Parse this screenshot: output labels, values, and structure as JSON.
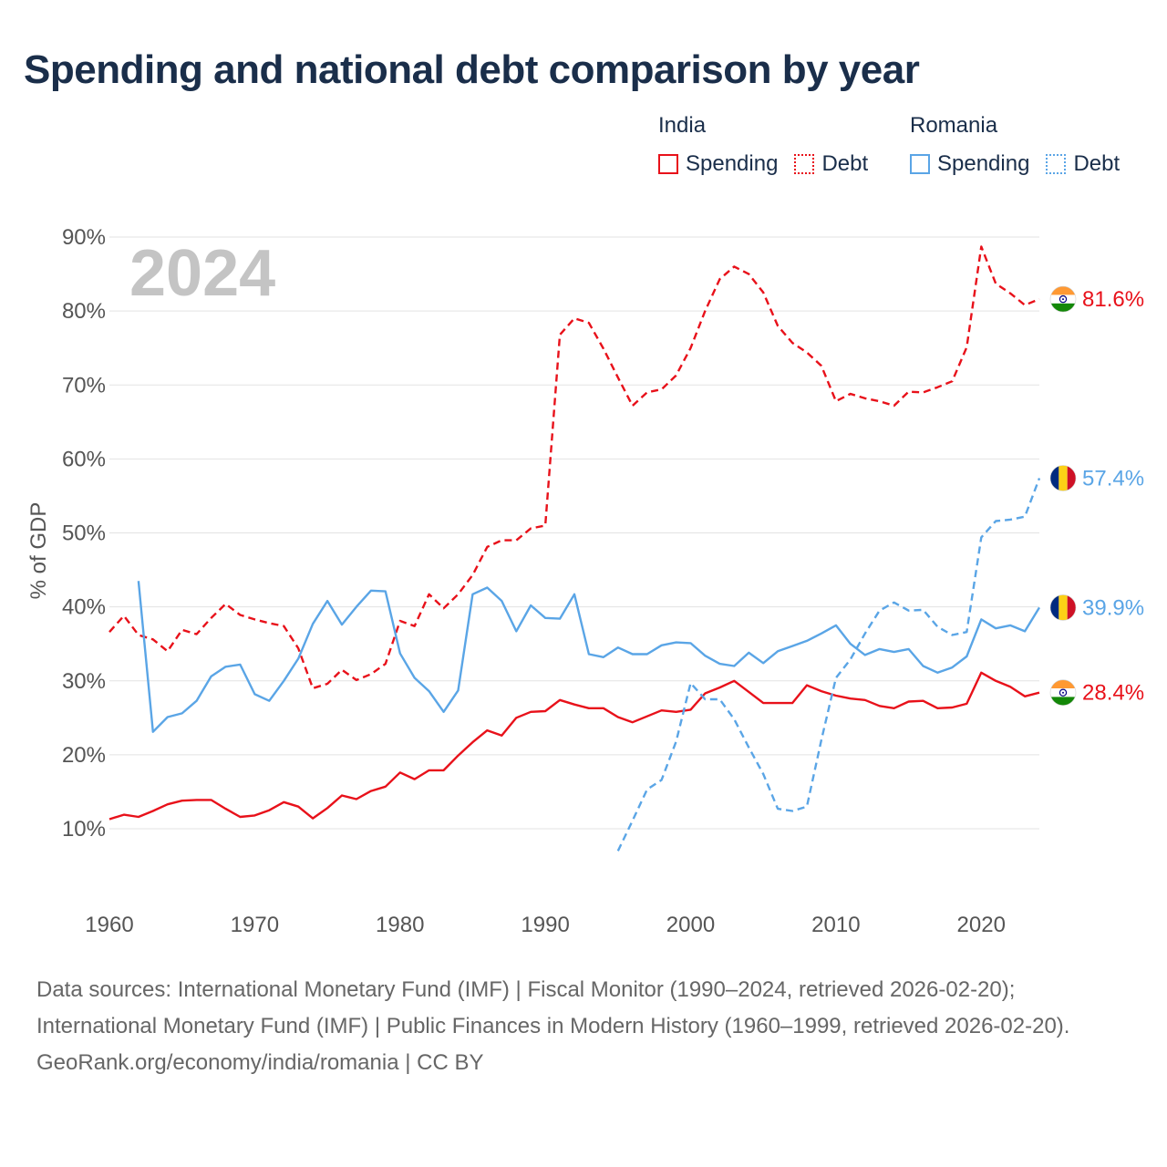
{
  "title": "Spending and national debt comparison by year",
  "legend": {
    "groups": [
      {
        "country": "India",
        "color": "#e8111a",
        "items": [
          "Spending",
          "Debt"
        ]
      },
      {
        "country": "Romania",
        "color": "#5aa5e6",
        "items": [
          "Spending",
          "Debt"
        ]
      }
    ]
  },
  "year_watermark": "2024",
  "end_labels": [
    {
      "text": "81.6%",
      "value": 81.6,
      "color": "#e8111a",
      "flag": "india-flag"
    },
    {
      "text": "57.4%",
      "value": 57.4,
      "color": "#5aa5e6",
      "flag": "romania-flag"
    },
    {
      "text": "39.9%",
      "value": 39.9,
      "color": "#5aa5e6",
      "flag": "romania-flag"
    },
    {
      "text": "28.4%",
      "value": 28.4,
      "color": "#e8111a",
      "flag": "india-flag"
    }
  ],
  "footer": {
    "sources": "Data sources: International Monetary Fund (IMF) | Fiscal Monitor (1990–2024, retrieved 2026-02-20); International Monetary Fund (IMF) | Public Finances in Modern History (1960–1999, retrieved 2026-02-20).",
    "credit": "GeoRank.org/economy/india/romania | CC BY"
  },
  "chart_data": {
    "type": "line",
    "title": "Spending and national debt comparison by year",
    "xlabel": "",
    "ylabel": "% of GDP",
    "xlim": [
      1960,
      2024
    ],
    "ylim": [
      0,
      90
    ],
    "xticks": [
      1960,
      1970,
      1980,
      1990,
      2000,
      2010,
      2020
    ],
    "yticks": [
      10,
      20,
      30,
      40,
      50,
      60,
      70,
      80,
      90
    ],
    "ytick_labels": [
      "10%",
      "20%",
      "30%",
      "40%",
      "50%",
      "60%",
      "70%",
      "80%",
      "90%"
    ],
    "grid": true,
    "series": [
      {
        "name": "India Spending",
        "country": "India",
        "measure": "Spending",
        "color": "#e8111a",
        "dash": "solid",
        "start_year": 1960,
        "values": [
          11.3,
          11.9,
          11.6,
          12.4,
          13.3,
          13.8,
          13.9,
          13.9,
          12.7,
          11.6,
          11.8,
          12.5,
          13.6,
          13.0,
          11.4,
          12.8,
          14.5,
          14.0,
          15.1,
          15.7,
          17.6,
          16.7,
          17.9,
          17.9,
          19.9,
          21.7,
          23.3,
          22.6,
          25.0,
          25.8,
          25.9,
          27.4,
          26.8,
          26.3,
          26.3,
          25.1,
          24.4,
          25.2,
          26.0,
          25.8,
          26.1,
          28.3,
          29.1,
          30.0,
          28.5,
          27.0,
          27.0,
          27.0,
          29.4,
          28.6,
          28.0,
          27.6,
          27.4,
          26.6,
          26.3,
          27.2,
          27.3,
          26.3,
          26.4,
          26.9,
          31.1,
          30.0,
          29.2,
          27.9,
          28.4
        ]
      },
      {
        "name": "India Debt",
        "country": "India",
        "measure": "Debt",
        "color": "#e8111a",
        "dash": "dashed",
        "start_year": 1960,
        "values": [
          36.6,
          38.8,
          36.2,
          35.6,
          34.0,
          36.9,
          36.3,
          38.5,
          40.4,
          38.9,
          38.3,
          37.8,
          37.4,
          34.4,
          29.0,
          29.6,
          31.5,
          30.1,
          30.9,
          32.3,
          38.1,
          37.4,
          41.7,
          39.8,
          41.7,
          44.3,
          48.1,
          49.0,
          49.0,
          50.6,
          51.0,
          76.8,
          79.0,
          78.4,
          74.9,
          71.0,
          67.2,
          69.0,
          69.4,
          71.3,
          75.0,
          80.0,
          84.3,
          86.0,
          85.0,
          82.5,
          78.0,
          75.7,
          74.4,
          72.6,
          67.8,
          68.8,
          68.2,
          67.8,
          67.2,
          69.1,
          69.0,
          69.7,
          70.5,
          75.1,
          88.7,
          83.7,
          82.4,
          80.8,
          81.6
        ]
      },
      {
        "name": "Romania Spending",
        "country": "Romania",
        "measure": "Spending",
        "color": "#5aa5e6",
        "dash": "solid",
        "start_year": 1962,
        "values": [
          43.5,
          23.1,
          25.1,
          25.6,
          27.3,
          30.6,
          31.9,
          32.2,
          28.2,
          27.3,
          30.0,
          33.0,
          37.7,
          40.8,
          37.6,
          40.0,
          42.2,
          42.1,
          33.7,
          30.4,
          28.6,
          25.8,
          28.7,
          41.7,
          42.6,
          40.8,
          36.7,
          40.2,
          38.5,
          38.4,
          41.7,
          33.6,
          33.2,
          34.5,
          33.6,
          33.6,
          34.8,
          35.2,
          35.1,
          33.4,
          32.3,
          32.0,
          33.8,
          32.4,
          34.0,
          34.7,
          35.4,
          36.4,
          37.5,
          35.0,
          33.5,
          34.3,
          33.9,
          34.3,
          32.0,
          31.1,
          31.8,
          33.3,
          38.3,
          37.1,
          37.5,
          36.7,
          39.9
        ]
      },
      {
        "name": "Romania Debt",
        "country": "Romania",
        "measure": "Debt",
        "color": "#5aa5e6",
        "dash": "dashed",
        "start_year": 1995,
        "values": [
          7.0,
          11.1,
          15.3,
          16.6,
          21.8,
          29.7,
          27.5,
          27.5,
          24.8,
          21.0,
          17.4,
          12.7,
          12.4,
          13.0,
          22.0,
          30.4,
          32.9,
          36.4,
          39.5,
          40.6,
          39.5,
          39.6,
          37.3,
          36.2,
          36.6,
          49.4,
          51.6,
          51.8,
          52.2,
          57.4
        ]
      }
    ]
  }
}
